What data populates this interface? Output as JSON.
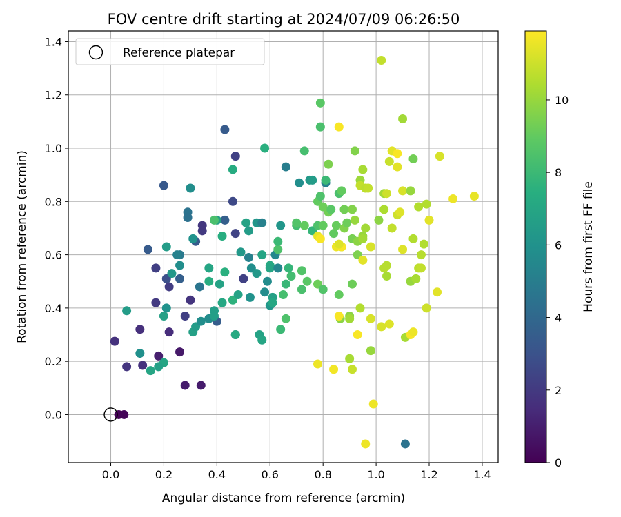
{
  "chart_data": {
    "type": "scatter",
    "title": "FOV centre drift starting at 2024/07/09 06:26:50",
    "xlabel": "Angular distance from reference (arcmin)",
    "ylabel": "Rotation from reference (arcmin)",
    "xlim": [
      -0.16,
      1.46
    ],
    "ylim": [
      -0.18,
      1.44
    ],
    "xticks": [
      0.0,
      0.2,
      0.4,
      0.6,
      0.8,
      1.0,
      1.2,
      1.4
    ],
    "yticks": [
      0.0,
      0.2,
      0.4,
      0.6,
      0.8,
      1.0,
      1.2,
      1.4
    ],
    "grid": true,
    "legend": {
      "placement": "top-left",
      "entries": [
        "Reference platepar"
      ]
    },
    "reference_point": {
      "x": 0.0,
      "y": 0.0,
      "label": "Reference platepar"
    },
    "colorbar": {
      "label": "Hours from first FF file",
      "range": [
        0,
        11.9
      ],
      "ticks": [
        0,
        2,
        4,
        6,
        8,
        10
      ],
      "colormap": "viridis"
    },
    "points": [
      [
        0.03,
        0.0,
        0.05
      ],
      [
        0.05,
        0.0,
        0.1
      ],
      [
        0.015,
        0.275,
        1.7
      ],
      [
        0.06,
        0.18,
        1.8
      ],
      [
        0.11,
        0.32,
        1.6
      ],
      [
        0.12,
        0.185,
        1.7
      ],
      [
        0.18,
        0.22,
        1.0
      ],
      [
        0.26,
        0.235,
        0.8
      ],
      [
        0.28,
        0.11,
        0.9
      ],
      [
        0.34,
        0.11,
        0.9
      ],
      [
        0.17,
        0.42,
        2.0
      ],
      [
        0.17,
        0.55,
        2.2
      ],
      [
        0.22,
        0.31,
        1.5
      ],
      [
        0.22,
        0.48,
        2.1
      ],
      [
        0.14,
        0.62,
        3.4
      ],
      [
        0.28,
        0.37,
        2.2
      ],
      [
        0.3,
        0.43,
        1.8
      ],
      [
        0.345,
        0.69,
        2.0
      ],
      [
        0.345,
        0.71,
        1.9
      ],
      [
        0.21,
        0.51,
        2.9
      ],
      [
        0.2,
        0.86,
        3.3
      ],
      [
        0.26,
        0.51,
        3.6
      ],
      [
        0.32,
        0.65,
        3.4
      ],
      [
        0.335,
        0.48,
        4.6
      ],
      [
        0.29,
        0.76,
        4.5
      ],
      [
        0.29,
        0.74,
        4.4
      ],
      [
        0.31,
        0.66,
        6.0
      ],
      [
        0.26,
        0.6,
        4.8
      ],
      [
        0.25,
        0.6,
        5.2
      ],
      [
        0.26,
        0.56,
        5.8
      ],
      [
        0.23,
        0.53,
        6.3
      ],
      [
        0.21,
        0.63,
        6.5
      ],
      [
        0.21,
        0.4,
        6.0
      ],
      [
        0.2,
        0.37,
        6.7
      ],
      [
        0.2,
        0.195,
        7.0
      ],
      [
        0.18,
        0.18,
        6.7
      ],
      [
        0.15,
        0.165,
        7.0
      ],
      [
        0.11,
        0.23,
        5.9
      ],
      [
        0.06,
        0.39,
        6.5
      ],
      [
        0.3,
        0.85,
        5.8
      ],
      [
        0.31,
        0.31,
        6.7
      ],
      [
        0.32,
        0.33,
        6.5
      ],
      [
        0.34,
        0.35,
        5.8
      ],
      [
        0.37,
        0.36,
        5.7
      ],
      [
        0.39,
        0.39,
        6.6
      ],
      [
        0.4,
        0.35,
        3.5
      ],
      [
        0.43,
        1.07,
        3.4
      ],
      [
        0.43,
        0.73,
        3.6
      ],
      [
        0.46,
        0.8,
        2.6
      ],
      [
        0.47,
        0.97,
        2.3
      ],
      [
        0.47,
        0.68,
        2.4
      ],
      [
        0.5,
        0.51,
        2.3
      ],
      [
        0.47,
        0.3,
        3.1
      ],
      [
        0.39,
        0.37,
        6.6
      ],
      [
        0.4,
        0.73,
        6.7
      ],
      [
        0.41,
        0.49,
        6.8
      ],
      [
        0.42,
        0.42,
        7.1
      ],
      [
        0.42,
        0.67,
        7.4
      ],
      [
        0.43,
        0.535,
        7.5
      ],
      [
        0.46,
        0.43,
        7.6
      ],
      [
        0.46,
        0.92,
        7.3
      ],
      [
        0.47,
        0.3,
        7.2
      ],
      [
        0.37,
        0.5,
        7.4
      ],
      [
        0.37,
        0.55,
        7.0
      ],
      [
        0.39,
        0.73,
        8.4
      ],
      [
        0.48,
        0.45,
        6.8
      ],
      [
        0.49,
        0.61,
        6.3
      ],
      [
        0.51,
        0.72,
        6.8
      ],
      [
        0.52,
        0.59,
        5.2
      ],
      [
        0.525,
        0.44,
        6.0
      ],
      [
        0.52,
        0.69,
        6.5
      ],
      [
        0.53,
        0.55,
        5.8
      ],
      [
        0.55,
        0.72,
        6.2
      ],
      [
        0.55,
        0.53,
        6.3
      ],
      [
        0.57,
        0.6,
        6.9
      ],
      [
        0.56,
        0.3,
        6.8
      ],
      [
        0.57,
        0.28,
        7.0
      ],
      [
        0.57,
        0.72,
        5.2
      ],
      [
        0.58,
        0.46,
        5.7
      ],
      [
        0.59,
        0.5,
        5.7
      ],
      [
        0.58,
        1.0,
        7.5
      ],
      [
        0.6,
        0.56,
        7.2
      ],
      [
        0.6,
        0.41,
        6.2
      ],
      [
        0.6,
        0.55,
        7.0
      ],
      [
        0.61,
        0.44,
        6.7
      ],
      [
        0.61,
        0.42,
        7.1
      ],
      [
        0.62,
        0.6,
        5.5
      ],
      [
        0.63,
        0.55,
        5.4
      ],
      [
        0.64,
        0.71,
        6.2
      ],
      [
        0.66,
        0.93,
        5.0
      ],
      [
        0.66,
        0.49,
        7.9
      ],
      [
        0.65,
        0.45,
        8.3
      ],
      [
        0.66,
        0.36,
        8.5
      ],
      [
        0.64,
        0.32,
        8.0
      ],
      [
        0.63,
        0.62,
        8.5
      ],
      [
        0.63,
        0.65,
        8.0
      ],
      [
        0.67,
        0.55,
        7.8
      ],
      [
        0.68,
        0.52,
        8.2
      ],
      [
        0.7,
        0.71,
        8.2
      ],
      [
        0.71,
        0.87,
        5.8
      ],
      [
        0.7,
        0.72,
        8.6
      ],
      [
        0.72,
        0.47,
        8.4
      ],
      [
        0.72,
        0.54,
        8.6
      ],
      [
        0.73,
        0.99,
        8.3
      ],
      [
        0.73,
        0.71,
        9.0
      ],
      [
        0.74,
        0.5,
        8.8
      ],
      [
        0.75,
        0.88,
        6.3
      ],
      [
        0.76,
        0.69,
        7.8
      ],
      [
        0.76,
        0.88,
        6.5
      ],
      [
        0.78,
        0.71,
        8.5
      ],
      [
        0.78,
        0.8,
        9.0
      ],
      [
        0.78,
        0.49,
        9.2
      ],
      [
        0.79,
        0.82,
        8.5
      ],
      [
        0.79,
        1.17,
        8.8
      ],
      [
        0.79,
        1.08,
        8.4
      ],
      [
        0.8,
        0.47,
        8.6
      ],
      [
        0.8,
        0.71,
        9.0
      ],
      [
        0.8,
        0.78,
        9.2
      ],
      [
        0.81,
        0.87,
        5.2
      ],
      [
        0.81,
        0.88,
        8.0
      ],
      [
        0.82,
        0.76,
        9.3
      ],
      [
        0.82,
        0.94,
        9.5
      ],
      [
        0.83,
        0.77,
        8.8
      ],
      [
        0.84,
        0.68,
        9.0
      ],
      [
        0.85,
        0.71,
        9.1
      ],
      [
        0.86,
        0.83,
        8.4
      ],
      [
        0.86,
        0.45,
        9.0
      ],
      [
        0.865,
        0.36,
        9.8
      ],
      [
        0.87,
        0.84,
        9.0
      ],
      [
        0.87,
        0.63,
        9.4
      ],
      [
        0.88,
        0.77,
        9.3
      ],
      [
        0.88,
        0.7,
        9.6
      ],
      [
        0.89,
        0.72,
        9.2
      ],
      [
        0.9,
        0.37,
        9.8
      ],
      [
        0.9,
        0.21,
        10.3
      ],
      [
        0.9,
        0.36,
        10.2
      ],
      [
        0.91,
        0.77,
        9.6
      ],
      [
        0.91,
        0.66,
        9.4
      ],
      [
        0.91,
        0.49,
        9.2
      ],
      [
        0.92,
        0.99,
        9.6
      ],
      [
        0.92,
        0.73,
        10.0
      ],
      [
        0.93,
        0.6,
        9.5
      ],
      [
        0.93,
        0.65,
        9.8
      ],
      [
        0.94,
        0.88,
        10.1
      ],
      [
        0.94,
        0.86,
        10.8
      ],
      [
        0.95,
        0.67,
        10.0
      ],
      [
        0.95,
        0.66,
        10.2
      ],
      [
        0.95,
        0.92,
        10.3
      ],
      [
        0.95,
        0.58,
        11.4
      ],
      [
        0.94,
        0.4,
        10.5
      ],
      [
        0.96,
        0.7,
        10.2
      ],
      [
        0.96,
        0.85,
        10.7
      ],
      [
        0.97,
        0.85,
        10.8
      ],
      [
        0.98,
        0.36,
        11.2
      ],
      [
        0.98,
        0.24,
        10.0
      ],
      [
        0.98,
        0.63,
        11.2
      ],
      [
        0.99,
        0.04,
        11.6
      ],
      [
        1.01,
        0.73,
        9.8
      ],
      [
        1.02,
        0.33,
        11.2
      ],
      [
        1.02,
        1.33,
        10.8
      ],
      [
        1.03,
        0.83,
        10.2
      ],
      [
        1.03,
        0.77,
        10.4
      ],
      [
        1.03,
        0.55,
        10.6
      ],
      [
        1.04,
        0.56,
        10.6
      ],
      [
        1.04,
        0.52,
        10.3
      ],
      [
        1.04,
        0.83,
        11.0
      ],
      [
        1.05,
        0.34,
        11.3
      ],
      [
        1.05,
        0.95,
        10.9
      ],
      [
        1.06,
        0.99,
        11.4
      ],
      [
        1.06,
        0.7,
        10.8
      ],
      [
        1.08,
        0.98,
        11.8
      ],
      [
        1.08,
        0.93,
        11.4
      ],
      [
        1.08,
        0.75,
        11.0
      ],
      [
        1.09,
        0.76,
        11.3
      ],
      [
        1.1,
        0.84,
        11.2
      ],
      [
        1.1,
        1.11,
        10.2
      ],
      [
        1.1,
        0.62,
        11.3
      ],
      [
        1.11,
        0.29,
        10.3
      ],
      [
        1.11,
        -0.11,
        4.5
      ],
      [
        1.13,
        0.5,
        10.0
      ],
      [
        1.13,
        0.84,
        10.0
      ],
      [
        1.14,
        0.66,
        10.5
      ],
      [
        1.14,
        0.96,
        9.3
      ],
      [
        1.15,
        0.51,
        10.3
      ],
      [
        1.16,
        0.55,
        10.7
      ],
      [
        1.16,
        0.78,
        10.5
      ],
      [
        1.17,
        0.55,
        10.8
      ],
      [
        1.17,
        0.6,
        10.6
      ],
      [
        1.18,
        0.64,
        10.5
      ],
      [
        1.19,
        0.79,
        10.5
      ],
      [
        1.19,
        0.4,
        11.0
      ],
      [
        1.2,
        0.73,
        11.4
      ],
      [
        1.23,
        0.46,
        11.4
      ],
      [
        1.24,
        0.97,
        11.2
      ],
      [
        1.29,
        0.81,
        11.6
      ],
      [
        1.37,
        0.82,
        11.5
      ],
      [
        1.13,
        0.3,
        11.8
      ],
      [
        1.14,
        0.31,
        11.6
      ],
      [
        0.85,
        0.63,
        11.6
      ],
      [
        0.87,
        0.63,
        11.8
      ],
      [
        0.86,
        0.37,
        11.8
      ],
      [
        0.86,
        1.08,
        11.8
      ],
      [
        0.78,
        0.67,
        11.5
      ],
      [
        0.79,
        0.66,
        11.8
      ],
      [
        0.78,
        0.19,
        11.6
      ],
      [
        0.84,
        0.17,
        11.7
      ],
      [
        0.93,
        0.3,
        11.8
      ],
      [
        0.91,
        0.17,
        10.9
      ],
      [
        0.96,
        -0.11,
        11.6
      ],
      [
        0.86,
        0.64,
        11.3
      ]
    ]
  }
}
